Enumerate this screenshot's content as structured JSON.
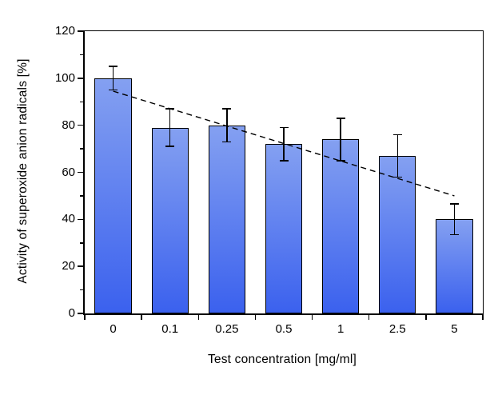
{
  "colors": {
    "background": "#ffffff",
    "axis": "#000000",
    "bar_fill_top": "#84A0F1",
    "bar_fill_bottom": "#3B61EE",
    "bar_border": "#000000",
    "error_bar": "#000000",
    "trendline": "#000000",
    "text": "#000000"
  },
  "chart_data": {
    "type": "bar",
    "title": "",
    "xlabel": "Test concentration [mg/ml]",
    "ylabel": "Activity of superoxide anion radicals [%]",
    "categories": [
      "0",
      "0.1",
      "0.25",
      "0.5",
      "1",
      "2.5",
      "5"
    ],
    "values": [
      100,
      79,
      80,
      72,
      74,
      67,
      40
    ],
    "error_bars": [
      5,
      8,
      7,
      7,
      9,
      9,
      6.5
    ],
    "ylim": [
      0,
      120
    ],
    "y_major_ticks": [
      0,
      20,
      40,
      60,
      80,
      100,
      120
    ],
    "y_minor_tick_step": 10,
    "grid": false,
    "legend": "none",
    "bar_width_fraction": 0.65,
    "trendline": {
      "style": "dashed",
      "start_category_index": 0,
      "start_value": 94.5,
      "end_category_index": 6,
      "end_value": 50
    }
  }
}
